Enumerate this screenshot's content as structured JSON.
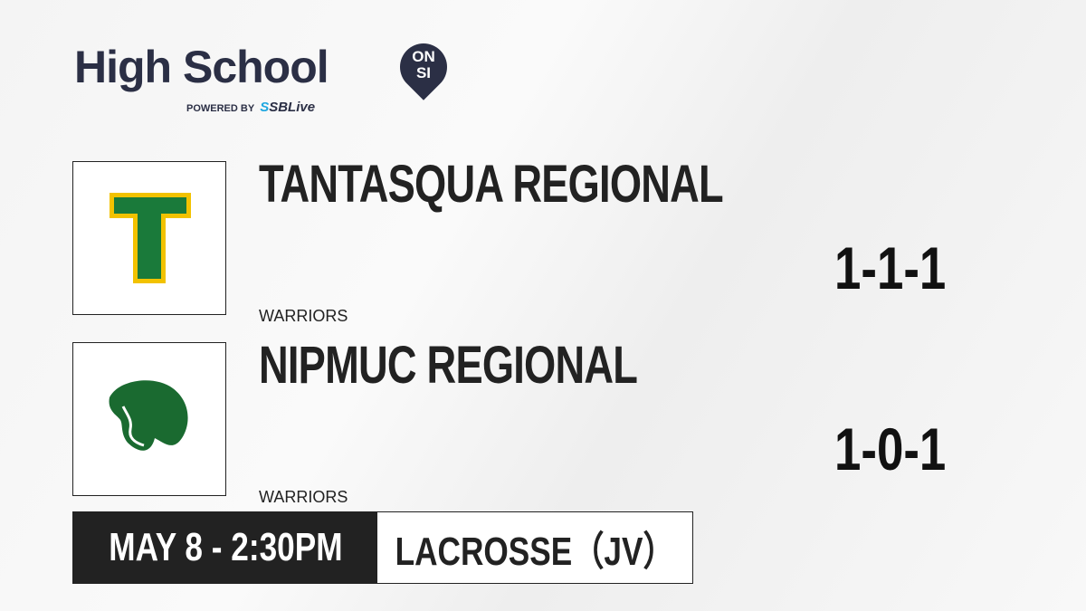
{
  "brand": {
    "title": "High School",
    "badge_top": "ON",
    "badge_bottom": "SI",
    "powered_by": "POWERED BY",
    "partner_prefix": "S",
    "partner": "SBLive"
  },
  "teams": [
    {
      "name": "TANTASQUA REGIONAL",
      "mascot": "WARRIORS",
      "record": "1-1-1",
      "logo_letter": "T",
      "colors": {
        "primary": "#1a7a3a",
        "outline": "#f2c200"
      }
    },
    {
      "name": "NIPMUC REGIONAL",
      "mascot": "WARRIORS",
      "record": "1-0-1",
      "colors": {
        "primary": "#1a6a30"
      }
    }
  ],
  "game": {
    "datetime": "MAY 8 - 2:30PM",
    "sport": "LACROSSE（JV）"
  }
}
